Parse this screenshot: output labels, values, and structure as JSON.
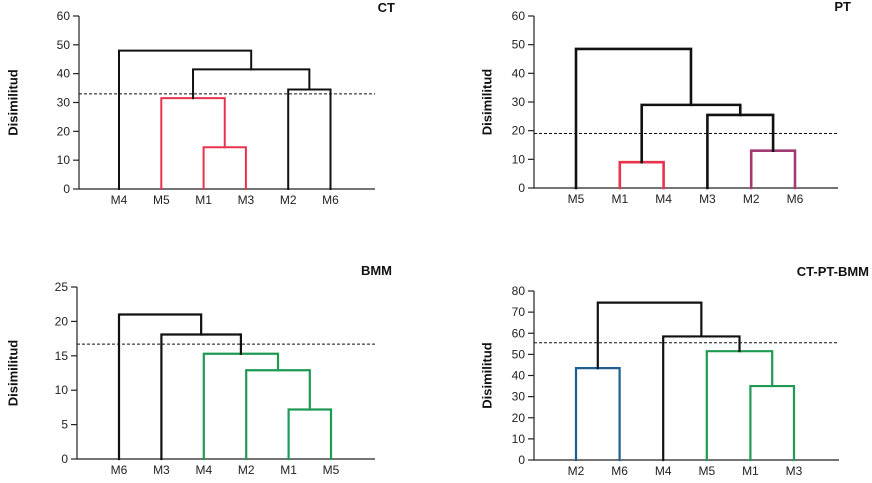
{
  "chart_data": [
    {
      "type": "dendrogram",
      "title": "CT",
      "ylabel": "Disimilitud",
      "ylim": [
        0,
        60
      ],
      "yticks": [
        0,
        10,
        20,
        30,
        40,
        50,
        60
      ],
      "leaves": [
        "M4",
        "M5",
        "M1",
        "M3",
        "M2",
        "M6"
      ],
      "cutoff": 33,
      "merges": [
        {
          "a": "M1",
          "b": "M3",
          "height": 14.5,
          "color": "#e8334f"
        },
        {
          "a": "M5",
          "b": 0,
          "height": 31.5,
          "color": "#e8334f"
        },
        {
          "a": "M2",
          "b": "M6",
          "height": 34.5,
          "color": "#111111"
        },
        {
          "a": 1,
          "b": 2,
          "height": 41.5,
          "color": "#111111"
        },
        {
          "a": "M4",
          "b": 3,
          "height": 48,
          "color": "#111111"
        }
      ]
    },
    {
      "type": "dendrogram",
      "title": "PT",
      "ylabel": "Disimilitud",
      "ylim": [
        0,
        60
      ],
      "yticks": [
        0,
        10,
        20,
        30,
        40,
        50,
        60
      ],
      "leaves": [
        "M5",
        "M1",
        "M4",
        "M3",
        "M2",
        "M6"
      ],
      "cutoff": 19,
      "merges": [
        {
          "a": "M1",
          "b": "M4",
          "height": 9,
          "color": "#e8334f"
        },
        {
          "a": "M2",
          "b": "M6",
          "height": 13,
          "color": "#a23a74"
        },
        {
          "a": "M3",
          "b": 1,
          "height": 25.5,
          "color": "#111111"
        },
        {
          "a": 0,
          "b": 2,
          "height": 29,
          "color": "#111111"
        },
        {
          "a": "M5",
          "b": 3,
          "height": 48.5,
          "color": "#111111"
        }
      ]
    },
    {
      "type": "dendrogram",
      "title": "BMM",
      "ylabel": "Disimilitud",
      "ylim": [
        0,
        25
      ],
      "yticks": [
        0,
        5,
        10,
        15,
        20,
        25
      ],
      "leaves": [
        "M6",
        "M3",
        "M4",
        "M2",
        "M1",
        "M5"
      ],
      "cutoff": 16.7,
      "merges": [
        {
          "a": "M1",
          "b": "M5",
          "height": 7.2,
          "color": "#1e9a54"
        },
        {
          "a": "M2",
          "b": 0,
          "height": 12.9,
          "color": "#1e9a54"
        },
        {
          "a": "M4",
          "b": 1,
          "height": 15.3,
          "color": "#1e9a54"
        },
        {
          "a": "M3",
          "b": 2,
          "height": 18.1,
          "color": "#111111"
        },
        {
          "a": "M6",
          "b": 3,
          "height": 21,
          "color": "#111111"
        }
      ]
    },
    {
      "type": "dendrogram",
      "title": "CT-PT-BMM",
      "ylabel": "Disimilitud",
      "ylim": [
        0,
        80
      ],
      "yticks": [
        0,
        10,
        20,
        30,
        40,
        50,
        60,
        70,
        80
      ],
      "leaves": [
        "M2",
        "M6",
        "M4",
        "M5",
        "M1",
        "M3"
      ],
      "cutoff": 55.5,
      "merges": [
        {
          "a": "M1",
          "b": "M3",
          "height": 35,
          "color": "#1e9a54"
        },
        {
          "a": "M2",
          "b": "M6",
          "height": 43.5,
          "color": "#1f5f8f"
        },
        {
          "a": "M5",
          "b": 0,
          "height": 51.5,
          "color": "#1e9a54"
        },
        {
          "a": "M4",
          "b": 2,
          "height": 58.5,
          "color": "#111111"
        },
        {
          "a": 1,
          "b": 3,
          "height": 74.5,
          "color": "#111111"
        }
      ]
    }
  ]
}
